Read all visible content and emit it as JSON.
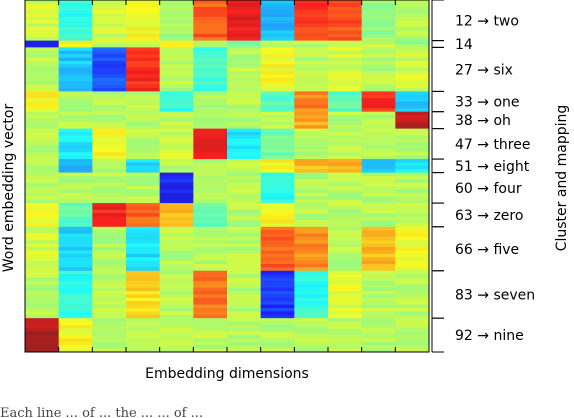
{
  "chart_data": {
    "type": "heatmap",
    "title": "",
    "xlabel": "Embedding dimensions",
    "ylabel": "Word embedding vector",
    "right_label": "Cluster and mapping",
    "colormap": "jet",
    "value_range": [
      0,
      1
    ],
    "num_columns": 12,
    "clusters": [
      {
        "label": "12 → two",
        "rows": 12,
        "values": [
          0.58,
          0.4,
          0.58,
          0.62,
          0.52,
          0.8,
          0.9,
          0.3,
          0.84,
          0.82,
          0.52,
          0.55
        ]
      },
      {
        "label": "14",
        "rows": 2,
        "values": [
          0.08,
          0.62,
          0.55,
          0.55,
          0.62,
          0.55,
          0.48,
          0.55,
          0.55,
          0.58,
          0.55,
          0.5
        ]
      },
      {
        "label": "27 → six",
        "rows": 13,
        "values": [
          0.55,
          0.32,
          0.18,
          0.86,
          0.55,
          0.42,
          0.55,
          0.62,
          0.55,
          0.58,
          0.55,
          0.58
        ]
      },
      {
        "label": "33 → one",
        "rows": 6,
        "values": [
          0.62,
          0.55,
          0.55,
          0.55,
          0.4,
          0.55,
          0.55,
          0.45,
          0.76,
          0.45,
          0.86,
          0.32
        ]
      },
      {
        "label": "38 → oh",
        "rows": 5,
        "values": [
          0.55,
          0.55,
          0.55,
          0.55,
          0.55,
          0.55,
          0.55,
          0.55,
          0.72,
          0.55,
          0.55,
          0.94
        ]
      },
      {
        "label": "47 → three",
        "rows": 9,
        "values": [
          0.55,
          0.36,
          0.62,
          0.55,
          0.58,
          0.9,
          0.35,
          0.48,
          0.55,
          0.55,
          0.55,
          0.55
        ]
      },
      {
        "label": "51 → eight",
        "rows": 4,
        "values": [
          0.55,
          0.3,
          0.55,
          0.35,
          0.55,
          0.55,
          0.55,
          0.62,
          0.7,
          0.7,
          0.3,
          0.35
        ]
      },
      {
        "label": "60 → four",
        "rows": 9,
        "values": [
          0.55,
          0.55,
          0.55,
          0.55,
          0.12,
          0.55,
          0.55,
          0.4,
          0.55,
          0.55,
          0.55,
          0.55
        ]
      },
      {
        "label": "63 → zero",
        "rows": 7,
        "values": [
          0.62,
          0.45,
          0.88,
          0.8,
          0.7,
          0.45,
          0.55,
          0.62,
          0.55,
          0.55,
          0.55,
          0.55
        ]
      },
      {
        "label": "66 → five",
        "rows": 13,
        "values": [
          0.58,
          0.34,
          0.55,
          0.35,
          0.55,
          0.55,
          0.55,
          0.8,
          0.75,
          0.55,
          0.7,
          0.62
        ]
      },
      {
        "label": "83 → seven",
        "rows": 14,
        "values": [
          0.55,
          0.4,
          0.55,
          0.66,
          0.55,
          0.78,
          0.55,
          0.15,
          0.4,
          0.6,
          0.55,
          0.55
        ]
      },
      {
        "label": "92 → nine",
        "rows": 10,
        "values": [
          0.95,
          0.62,
          0.55,
          0.55,
          0.55,
          0.55,
          0.55,
          0.55,
          0.55,
          0.55,
          0.55,
          0.55
        ]
      }
    ]
  },
  "caption_fragment": "Each line ... of ... the ... ... of ... "
}
